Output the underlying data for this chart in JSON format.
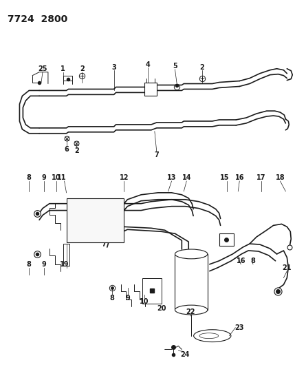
{
  "title": "7724  2800",
  "title_fontsize": 10,
  "bg_color": "#ffffff",
  "line_color": "#1a1a1a",
  "label_fontsize": 7,
  "figsize": [
    4.29,
    5.33
  ],
  "dpi": 100
}
